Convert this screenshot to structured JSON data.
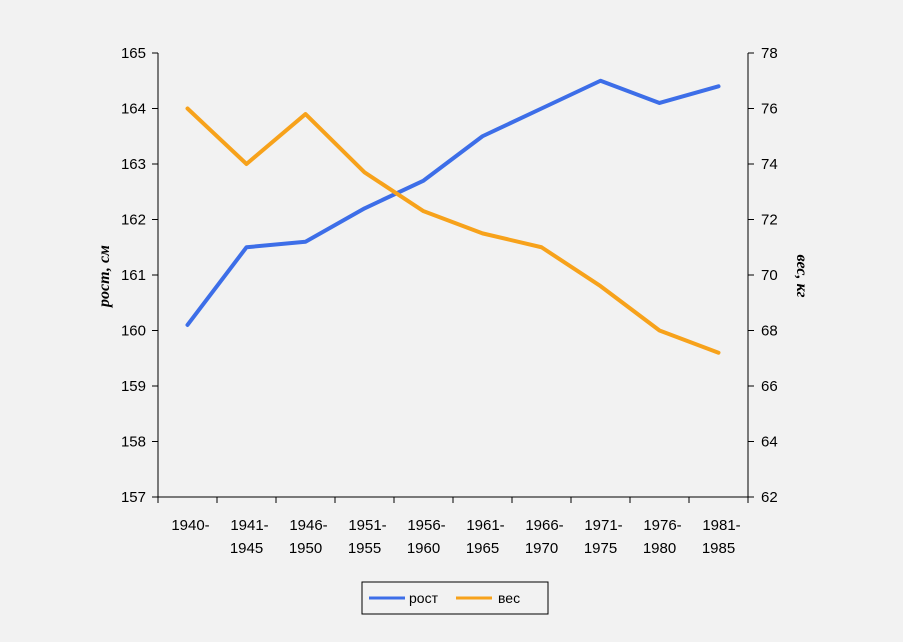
{
  "chart_data": {
    "type": "line",
    "title": "",
    "xlabel": "",
    "ylabel_left": "рост, см",
    "ylabel_right": "вес, кг",
    "categories": [
      [
        "1940-",
        ""
      ],
      [
        "1941-",
        "1945"
      ],
      [
        "1946-",
        "1950"
      ],
      [
        "1951-",
        "1955"
      ],
      [
        "1956-",
        "1960"
      ],
      [
        "1961-",
        "1965"
      ],
      [
        "1966-",
        "1970"
      ],
      [
        "1971-",
        "1975"
      ],
      [
        "1976-",
        "1980"
      ],
      [
        "1981-",
        "1985"
      ]
    ],
    "ylim_left": [
      157,
      165
    ],
    "yticks_left": [
      157,
      158,
      159,
      160,
      161,
      162,
      163,
      164,
      165
    ],
    "ylim_right": [
      62,
      78
    ],
    "yticks_right": [
      62,
      64,
      66,
      68,
      70,
      72,
      74,
      76,
      78
    ],
    "series": [
      {
        "name": "рост",
        "axis": "left",
        "color": "#3d6ee8",
        "values": [
          160.1,
          161.5,
          161.6,
          162.2,
          162.7,
          163.5,
          164.0,
          164.5,
          164.1,
          164.4
        ]
      },
      {
        "name": "вес",
        "axis": "right",
        "color": "#f7a21b",
        "values": [
          76.0,
          74.0,
          75.8,
          73.7,
          72.3,
          71.5,
          71.0,
          69.6,
          68.0,
          67.2
        ]
      }
    ],
    "legend": {
      "position": "bottom",
      "items": [
        "рост",
        "вес"
      ]
    },
    "grid": false
  }
}
